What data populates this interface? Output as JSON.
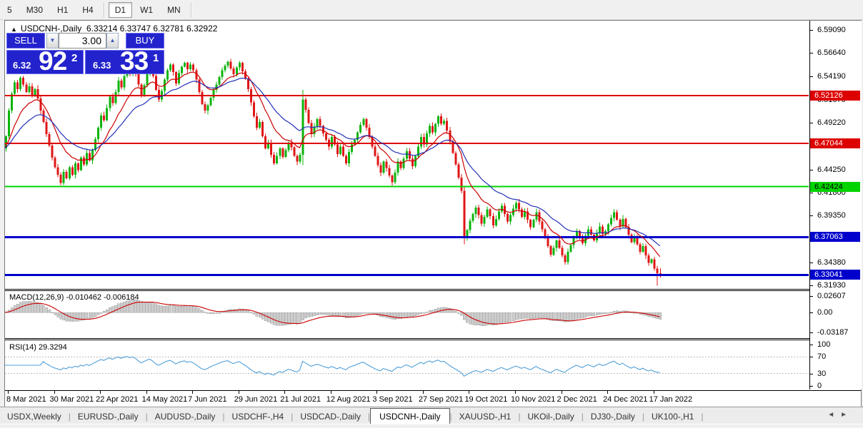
{
  "app": {
    "toolbar": {
      "timeframes": [
        "5",
        "M30",
        "H1",
        "H4",
        "D1",
        "W1",
        "MN"
      ],
      "active_timeframe": "D1"
    },
    "tabs": {
      "items": [
        "USDX,Weekly",
        "EURUSD-,Daily",
        "AUDUSD-,Daily",
        "USDCHF-,H4",
        "USDCAD-,Daily",
        "USDCNH-,Daily",
        "XAUUSD-,H1",
        "UKOil-,Daily",
        "DJ30-,Daily",
        "UK100-,H1"
      ],
      "active": "USDCNH-,Daily",
      "scroll_left_icon": "◄",
      "scroll_right_icon": "►"
    }
  },
  "chart": {
    "title": {
      "collapse_icon": "▲",
      "symbol": "USDCNH-,Daily",
      "ohlc": "6.33214 6.33747 6.32781 6.32922"
    },
    "trade_panel": {
      "sell_label": "SELL",
      "buy_label": "BUY",
      "volume": "3.00",
      "spin_up_icon": "▲",
      "spin_down_icon": "▼",
      "sell_price_small": "6.32",
      "sell_price_big": "92",
      "sell_price_sup": "2",
      "buy_price_small": "6.33",
      "buy_price_big": "33",
      "buy_price_sup": "1"
    }
  },
  "chart_data": {
    "type": "candlestick",
    "symbol": "USDCNH-",
    "timeframe": "Daily",
    "last_bar": {
      "open": 6.33214,
      "high": 6.33747,
      "low": 6.32781,
      "close": 6.32922
    },
    "colors": {
      "up": "#0cb40c",
      "down": "#e01616",
      "ma_fast": "#cc0000",
      "ma_slow": "#2331b8",
      "hline_red": "#dd0000",
      "hline_green": "#00d400",
      "hline_blue": "#0000cc",
      "macd_hist_fill": "#cdcdcd",
      "macd_hist_stroke": "#9a9a9a",
      "macd_signal": "#cc0000",
      "rsi_line": "#4f9fd8",
      "rsi_levels": "#bbbbbb"
    },
    "price_ticks": [
      "6.59090",
      "6.56640",
      "6.54190",
      "6.51670",
      "6.49220",
      "6.46770",
      "6.44250",
      "6.41800",
      "6.39350",
      "6.36900",
      "6.34380",
      "6.31930"
    ],
    "hlines": [
      {
        "value": 6.52126,
        "label": "6.52126",
        "color": "#dd0000",
        "text_color": "#ffffff",
        "width": 2
      },
      {
        "value": 6.47044,
        "label": "6.47044",
        "color": "#dd0000",
        "text_color": "#ffffff",
        "width": 2
      },
      {
        "value": 6.42424,
        "label": "6.42424",
        "color": "#00d400",
        "text_color": "#000000",
        "width": 2
      },
      {
        "value": 6.37063,
        "label": "6.37063",
        "color": "#0000cc",
        "text_color": "#ffffff",
        "width": 3
      },
      {
        "value": 6.33041,
        "label": "6.33041",
        "color": "#0000cc",
        "text_color": "#ffffff",
        "width": 3
      }
    ],
    "x_labels": [
      "8 Mar 2021",
      "30 Mar 2021",
      "22 Apr 2021",
      "14 May 2021",
      "7 Jun 2021",
      "29 Jun 2021",
      "21 Jul 2021",
      "12 Aug 2021",
      "3 Sep 2021",
      "27 Sep 2021",
      "19 Oct 2021",
      "10 Nov 2021",
      "2 Dec 2021",
      "24 Dec 2021",
      "17 Jan 2022"
    ],
    "bars_per_label": 16,
    "first_open": 6.52,
    "closes": [
      6.465,
      6.478,
      6.505,
      6.523,
      6.535,
      6.528,
      6.54,
      6.533,
      6.525,
      6.531,
      6.522,
      6.528,
      6.518,
      6.505,
      6.493,
      6.48,
      6.468,
      6.455,
      6.445,
      6.437,
      6.428,
      6.44,
      6.433,
      6.445,
      6.437,
      6.449,
      6.442,
      6.455,
      6.448,
      6.46,
      6.452,
      6.463,
      6.475,
      6.487,
      6.5,
      6.495,
      6.508,
      6.52,
      6.513,
      6.525,
      6.537,
      6.53,
      6.542,
      6.55,
      6.545,
      6.552,
      6.545,
      6.533,
      6.522,
      6.532,
      6.544,
      6.552,
      6.542,
      6.527,
      6.517,
      6.526,
      6.538,
      6.548,
      6.554,
      6.546,
      6.534,
      6.545,
      6.552,
      6.556,
      6.549,
      6.554,
      6.548,
      6.538,
      6.525,
      6.512,
      6.505,
      6.511,
      6.519,
      6.527,
      6.533,
      6.541,
      6.548,
      6.553,
      6.557,
      6.55,
      6.544,
      6.551,
      6.556,
      6.547,
      6.539,
      6.528,
      6.514,
      6.499,
      6.487,
      6.493,
      6.478,
      6.465,
      6.471,
      6.458,
      6.449,
      6.457,
      6.465,
      6.456,
      6.463,
      6.471,
      6.466,
      6.457,
      6.451,
      6.458,
      6.517,
      6.506,
      6.492,
      6.48,
      6.488,
      6.496,
      6.489,
      6.481,
      6.474,
      6.467,
      6.477,
      6.469,
      6.459,
      6.467,
      6.457,
      6.449,
      6.461,
      6.469,
      6.474,
      6.482,
      6.49,
      6.496,
      6.487,
      6.477,
      6.467,
      6.457,
      6.447,
      6.439,
      6.451,
      6.444,
      6.436,
      6.429,
      6.439,
      6.451,
      6.444,
      6.454,
      6.462,
      6.454,
      6.446,
      6.457,
      6.467,
      6.477,
      6.469,
      6.481,
      6.489,
      6.482,
      6.491,
      6.499,
      6.491,
      6.494,
      6.484,
      6.472,
      6.46,
      6.448,
      6.434,
      6.42,
      6.37,
      6.378,
      6.388,
      6.395,
      6.402,
      6.394,
      6.385,
      6.392,
      6.4,
      6.393,
      6.383,
      6.39,
      6.398,
      6.404,
      6.395,
      6.387,
      6.394,
      6.401,
      6.407,
      6.4,
      6.392,
      6.398,
      6.389,
      6.381,
      6.389,
      6.397,
      6.387,
      6.379,
      6.371,
      6.361,
      6.352,
      6.359,
      6.367,
      6.359,
      6.351,
      6.344,
      6.355,
      6.362,
      6.37,
      6.377,
      6.371,
      6.364,
      6.372,
      6.379,
      6.373,
      6.367,
      6.375,
      6.382,
      6.374,
      6.377,
      6.384,
      6.391,
      6.397,
      6.389,
      6.382,
      6.39,
      6.381,
      6.373,
      6.365,
      6.371,
      6.363,
      6.355,
      6.361,
      6.351,
      6.343,
      6.347,
      6.337,
      6.332,
      6.32922
    ],
    "bar_overrides": {
      "0": [
        6.52,
        6.553,
        6.443,
        6.465
      ],
      "104": [
        6.458,
        6.527,
        6.447,
        6.517
      ],
      "160": [
        6.42,
        6.425,
        6.363,
        6.37
      ],
      "227": [
        6.337,
        6.34,
        6.319,
        6.332
      ],
      "228": [
        6.33214,
        6.33747,
        6.32781,
        6.32922
      ]
    },
    "wick": {
      "base": 0.001,
      "range": 0.003
    },
    "moving_averages": [
      {
        "period": 12,
        "method": "ema",
        "color_key": "ma_fast"
      },
      {
        "period": 26,
        "method": "ema",
        "color_key": "ma_slow"
      }
    ],
    "indicators": {
      "macd": {
        "label": "MACD(12,26,9)",
        "value_main": "-0.010462",
        "value_signal": "-0.006184",
        "fast": 12,
        "slow": 26,
        "signal": 9,
        "ticks": [
          {
            "v": 0.02607,
            "t": "0.02607"
          },
          {
            "v": 0,
            "t": "0.00"
          },
          {
            "v": -0.03187,
            "t": "-0.03187"
          }
        ]
      },
      "rsi": {
        "label": "RSI(14)",
        "value": "29.3294",
        "period": 14,
        "ticks": [
          {
            "v": 100,
            "t": "100"
          },
          {
            "v": 70,
            "t": "70"
          },
          {
            "v": 30,
            "t": "30"
          },
          {
            "v": 0,
            "t": "0"
          }
        ],
        "levels": [
          70,
          30
        ]
      }
    }
  }
}
